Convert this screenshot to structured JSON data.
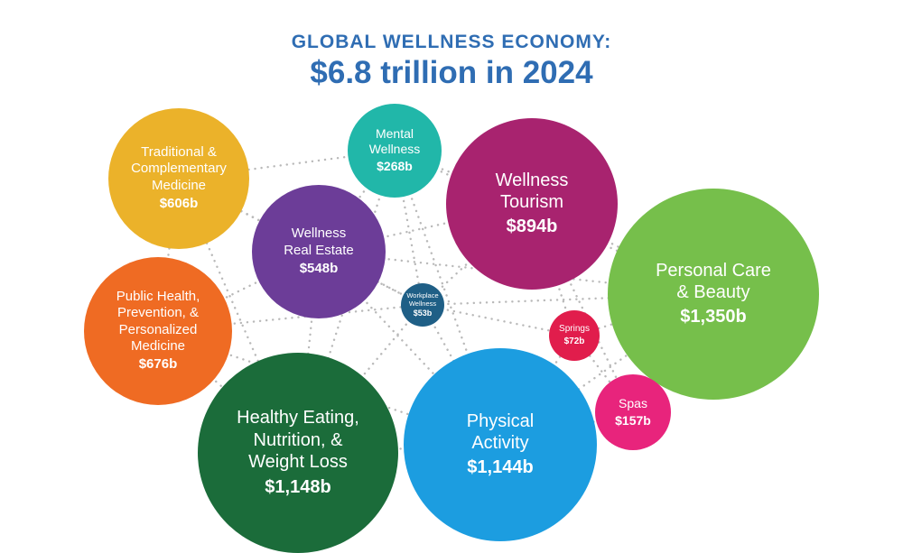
{
  "title": {
    "line1": "GLOBAL WELLNESS ECONOMY:",
    "line2": "$6.8 trillion in 2024"
  },
  "chart_data": {
    "type": "bubble",
    "title": "GLOBAL WELLNESS ECONOMY: $6.8 trillion in 2024",
    "categories": [
      {
        "key": "tcm",
        "label": "Traditional &\nComplementary\nMedicine",
        "value_label": "$606b",
        "value": 606,
        "color": "#ebb22a"
      },
      {
        "key": "mental",
        "label": "Mental\nWellness",
        "value_label": "$268b",
        "value": 268,
        "color": "#21b7a9"
      },
      {
        "key": "tourism",
        "label": "Wellness\nTourism",
        "value_label": "$894b",
        "value": 894,
        "color": "#a8236f"
      },
      {
        "key": "realestate",
        "label": "Wellness\nReal Estate",
        "value_label": "$548b",
        "value": 548,
        "color": "#6c3d98"
      },
      {
        "key": "beauty",
        "label": "Personal Care\n& Beauty",
        "value_label": "$1,350b",
        "value": 1350,
        "color": "#76bf4b"
      },
      {
        "key": "public",
        "label": "Public Health,\nPrevention, &\nPersonalized\nMedicine",
        "value_label": "$676b",
        "value": 676,
        "color": "#ef6b23"
      },
      {
        "key": "workplace",
        "label": "Workplace\nWellness",
        "value_label": "$53b",
        "value": 53,
        "color": "#1f5f86"
      },
      {
        "key": "springs",
        "label": "Springs",
        "value_label": "$72b",
        "value": 72,
        "color": "#e11d4c"
      },
      {
        "key": "eating",
        "label": "Healthy Eating,\nNutrition, &\nWeight Loss",
        "value_label": "$1,148b",
        "value": 1148,
        "color": "#1b6c3a"
      },
      {
        "key": "physical",
        "label": "Physical\nActivity",
        "value_label": "$1,144b",
        "value": 1144,
        "color": "#1c9de0"
      },
      {
        "key": "spas",
        "label": "Spas",
        "value_label": "$157b",
        "value": 157,
        "color": "#e8247c"
      }
    ]
  }
}
